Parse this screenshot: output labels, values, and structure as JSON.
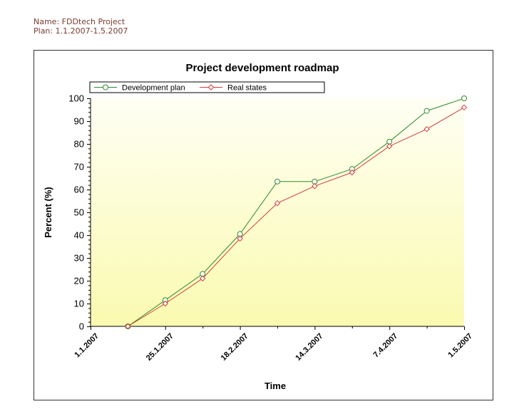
{
  "header": {
    "name_line": "Name: FDDtech Project",
    "plan_line": "Plan: 1.1.2007-1.5.2007"
  },
  "colors": {
    "header_text": "#7a3b2e",
    "plan_series": "#2e8b2e",
    "real_series": "#d43a3a",
    "plot_gradient_top": "#fffff4",
    "plot_gradient_bottom": "#fafab0"
  },
  "chart_data": {
    "type": "line",
    "title": "Project development roadmap",
    "xlabel": "Time",
    "ylabel": "Percent (%)",
    "ylim": [
      0,
      100
    ],
    "yticks": [
      0,
      10,
      20,
      30,
      40,
      50,
      60,
      70,
      80,
      90,
      100
    ],
    "grid": false,
    "legend": "top-left",
    "x_tick_labels": [
      "1.1.2007",
      "25.1.2007",
      "18.2.2007",
      "14.3.2007",
      "7.4.2007",
      "1.5.2007"
    ],
    "x": [
      "1.1.2007",
      "13.1.2007",
      "25.1.2007",
      "6.2.2007",
      "18.2.2007",
      "2.3.2007",
      "14.3.2007",
      "26.3.2007",
      "7.4.2007",
      "19.4.2007",
      "1.5.2007"
    ],
    "series": [
      {
        "name": "Development plan",
        "marker": "circle",
        "color": "#2e8b2e",
        "values": [
          null,
          0,
          11.5,
          23,
          40.5,
          63.5,
          63.5,
          69,
          81,
          94.5,
          100
        ]
      },
      {
        "name": "Real states",
        "marker": "diamond",
        "color": "#d43a3a",
        "values": [
          null,
          0,
          10,
          21,
          38.5,
          54,
          61.5,
          67.5,
          79,
          86.5,
          96
        ]
      }
    ]
  }
}
